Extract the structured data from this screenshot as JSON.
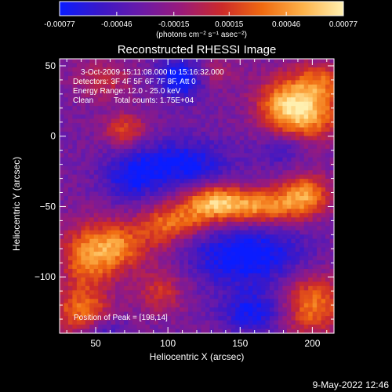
{
  "colorbar": {
    "tick_labels": [
      "-0.00077",
      "-0.00046",
      "-0.00015",
      "0.00015",
      "0.00046",
      "0.00077"
    ],
    "tick_values": [
      -0.00077,
      -0.00046,
      -0.00015,
      0.00015,
      0.00046,
      0.00077
    ],
    "range": [
      -0.00077,
      0.00077
    ],
    "units_label": "(photons cm⁻² s⁻¹ asec⁻²)",
    "colormap": [
      "#0a1cff",
      "#3a18c8",
      "#6a1aa8",
      "#9a1a7a",
      "#cc2a2a",
      "#f06a10",
      "#fdb24a",
      "#fff0b0"
    ]
  },
  "chart_data": {
    "type": "heatmap",
    "title": "Reconstructed RHESSI Image",
    "xlabel": "Heliocentric X (arcsec)",
    "ylabel": "Heliocentric Y (arcsec)",
    "xlim": [
      25,
      215
    ],
    "ylim": [
      -140,
      55
    ],
    "x_ticks": [
      50,
      100,
      150,
      200
    ],
    "y_ticks": [
      50,
      0,
      -50,
      -100
    ],
    "x_tick_labels": [
      "50",
      "100",
      "150",
      "200"
    ],
    "y_tick_labels": [
      "50",
      "0",
      "−50",
      "−100"
    ],
    "annotations": [
      "3-Oct-2009 15:11:08.000 to 15:16:32.000",
      "Detectors: 3F 4F 5F 6F 7F 8F, Att 0",
      "Energy Range: 12.0 - 25.0 keV",
      "Clean",
      "Total counts: 1.75E+04"
    ],
    "peak_label": "Position of Peak = [198,14]",
    "peak_position": [
      198,
      14
    ],
    "grid": false,
    "blobs": [
      {
        "x": 195,
        "y": 16,
        "w": 0.00077,
        "sx": 18,
        "sy": 14
      },
      {
        "x": 180,
        "y": 25,
        "w": 0.00045,
        "sx": 14,
        "sy": 14
      },
      {
        "x": 205,
        "y": 40,
        "w": 0.00045,
        "sx": 12,
        "sy": 10
      },
      {
        "x": 160,
        "y": -50,
        "w": 0.00077,
        "sx": 26,
        "sy": 9
      },
      {
        "x": 130,
        "y": -45,
        "w": 0.00055,
        "sx": 14,
        "sy": 8
      },
      {
        "x": 195,
        "y": -40,
        "w": 0.0006,
        "sx": 12,
        "sy": 10
      },
      {
        "x": 115,
        "y": -60,
        "w": 0.0004,
        "sx": 14,
        "sy": 8
      },
      {
        "x": 45,
        "y": -85,
        "w": 0.0007,
        "sx": 14,
        "sy": 16
      },
      {
        "x": 68,
        "y": -78,
        "w": 0.00055,
        "sx": 12,
        "sy": 12
      },
      {
        "x": 95,
        "y": -65,
        "w": 0.00045,
        "sx": 12,
        "sy": 12
      },
      {
        "x": 40,
        "y": -125,
        "w": 0.0006,
        "sx": 14,
        "sy": 12
      },
      {
        "x": 200,
        "y": -120,
        "w": 0.00065,
        "sx": 16,
        "sy": 16
      },
      {
        "x": 95,
        "y": -110,
        "w": 0.0004,
        "sx": 12,
        "sy": 12
      },
      {
        "x": 70,
        "y": 5,
        "w": 0.0005,
        "sx": 10,
        "sy": 8
      },
      {
        "x": 55,
        "y": 40,
        "w": 0.00035,
        "sx": 14,
        "sy": 10
      },
      {
        "x": 130,
        "y": 45,
        "w": 0.0003,
        "sx": 12,
        "sy": 8
      },
      {
        "x": 110,
        "y": -20,
        "w": -0.0005,
        "sx": 22,
        "sy": 12
      },
      {
        "x": 110,
        "y": 42,
        "w": -0.0006,
        "sx": 12,
        "sy": 10
      },
      {
        "x": 155,
        "y": -85,
        "w": -0.00055,
        "sx": 28,
        "sy": 16
      },
      {
        "x": 160,
        "y": -125,
        "w": -0.00045,
        "sx": 16,
        "sy": 10
      },
      {
        "x": 75,
        "y": -30,
        "w": -0.0004,
        "sx": 14,
        "sy": 12
      },
      {
        "x": 180,
        "y": -8,
        "w": -0.0003,
        "sx": 12,
        "sy": 10
      },
      {
        "x": 55,
        "y": -140,
        "w": -0.0003,
        "sx": 12,
        "sy": 8
      }
    ]
  },
  "footer": {
    "timestamp": "9-May-2022 12:46"
  }
}
